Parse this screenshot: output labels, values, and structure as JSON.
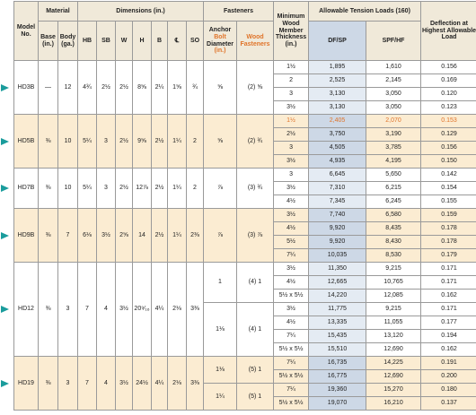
{
  "headers": {
    "model": "Model No.",
    "material": "Material",
    "base": "Base (in.)",
    "body": "Body (ga.)",
    "dimensions": "Dimensions (in.)",
    "HB": "HB",
    "SB": "SB",
    "W": "W",
    "H": "H",
    "B": "B",
    "CL": "℄",
    "SO": "SO",
    "fasteners": "Fasteners",
    "anchor_pre": "Anchor",
    "anchor_bolt": "Bolt",
    "anchor_post": "Diameter",
    "anchor_unit": "(in.)",
    "wood_fasteners": "Wood Fasteners",
    "min_wood": "Minimum Wood Member Thickness (in.)",
    "allowable": "Allowable Tension Loads (160)",
    "dfsp": "DF/SP",
    "spfhf": "SPF/HF",
    "deflection": "Deflection at Highest Allowable Load"
  },
  "models": [
    {
      "model": "HD3B",
      "base": "—",
      "body": "12",
      "HB": "4¾",
      "SB": "2½",
      "W": "2½",
      "H": "8⅝",
      "B": "2¼",
      "CL": "1⅝",
      "SO": "¾",
      "shade": false,
      "groups": [
        {
          "anchor": "⅝",
          "wood": "(2) ⅝",
          "rows": [
            [
              "1½",
              "1,895",
              "1,610",
              "0.156",
              false
            ],
            [
              "2",
              "2,525",
              "2,145",
              "0.169",
              false
            ],
            [
              "3",
              "3,130",
              "3,050",
              "0.120",
              false
            ],
            [
              "3½",
              "3,130",
              "3,050",
              "0.123",
              false
            ]
          ]
        }
      ]
    },
    {
      "model": "HD5B",
      "base": "⅜",
      "body": "10",
      "HB": "5¼",
      "SB": "3",
      "W": "2½",
      "H": "9⅝",
      "B": "2½",
      "CL": "1¼",
      "SO": "2",
      "shade": true,
      "groups": [
        {
          "anchor": "⅝",
          "wood": "(2) ¾",
          "rows": [
            [
              "1½",
              "2,405",
              "2,070",
              "0.153",
              true
            ],
            [
              "2½",
              "3,750",
              "3,190",
              "0.129",
              false
            ],
            [
              "3",
              "4,505",
              "3,785",
              "0.156",
              false
            ],
            [
              "3½",
              "4,935",
              "4,195",
              "0.150",
              false
            ]
          ]
        }
      ]
    },
    {
      "model": "HD7B",
      "base": "⅜",
      "body": "10",
      "HB": "5¼",
      "SB": "3",
      "W": "2½",
      "H": "12⅞",
      "B": "2½",
      "CL": "1¼",
      "SO": "2",
      "shade": false,
      "groups": [
        {
          "anchor": "⅞",
          "wood": "(3) ¾",
          "rows": [
            [
              "3",
              "6,645",
              "5,650",
              "0.142",
              false
            ],
            [
              "3½",
              "7,310",
              "6,215",
              "0.154",
              false
            ],
            [
              "4½",
              "7,345",
              "6,245",
              "0.155",
              false
            ]
          ]
        }
      ]
    },
    {
      "model": "HD9B",
      "base": "⅜",
      "body": "7",
      "HB": "6⅛",
      "SB": "3½",
      "W": "2⅝",
      "H": "14",
      "B": "2½",
      "CL": "1¼",
      "SO": "2⅜",
      "shade": true,
      "groups": [
        {
          "anchor": "⅞",
          "wood": "(3) ⅞",
          "rows": [
            [
              "3½",
              "7,740",
              "6,580",
              "0.159",
              false
            ],
            [
              "4½",
              "9,920",
              "8,435",
              "0.178",
              false
            ],
            [
              "5½",
              "9,920",
              "8,430",
              "0.178",
              false
            ],
            [
              "7¼",
              "10,035",
              "8,530",
              "0.179",
              false
            ]
          ]
        }
      ]
    },
    {
      "model": "HD12",
      "base": "⅜",
      "body": "3",
      "HB": "7",
      "SB": "4",
      "W": "3½",
      "H": "20⁹⁄₁₆",
      "B": "4¼",
      "CL": "2⅛",
      "SO": "3⅜",
      "shade": false,
      "groups": [
        {
          "anchor": "1",
          "wood": "(4) 1",
          "rows": [
            [
              "3½",
              "11,350",
              "9,215",
              "0.171",
              false
            ],
            [
              "4½",
              "12,665",
              "10,765",
              "0.171",
              false
            ],
            [
              "5½ x 5½",
              "14,220",
              "12,085",
              "0.162",
              false
            ]
          ]
        },
        {
          "anchor": "1⅛",
          "wood": "(4) 1",
          "rows": [
            [
              "3½",
              "11,775",
              "9,215",
              "0.171",
              false
            ],
            [
              "4½",
              "13,335",
              "11,055",
              "0.177",
              false
            ],
            [
              "7¼",
              "15,435",
              "13,120",
              "0.194",
              false
            ],
            [
              "5½ x 5½",
              "15,510",
              "12,690",
              "0.162",
              false
            ]
          ]
        }
      ]
    },
    {
      "model": "HD19",
      "base": "⅜",
      "body": "3",
      "HB": "7",
      "SB": "4",
      "W": "3½",
      "H": "24½",
      "B": "4¼",
      "CL": "2⅛",
      "SO": "3⅜",
      "shade": true,
      "groups": [
        {
          "anchor": "1⅛",
          "wood": "(5) 1",
          "rows": [
            [
              "7¼",
              "16,735",
              "14,225",
              "0.191",
              false
            ],
            [
              "5½ x 5½",
              "16,775",
              "12,690",
              "0.200",
              false
            ]
          ]
        },
        {
          "anchor": "1¼",
          "wood": "(5) 1",
          "rows": [
            [
              "7¼",
              "19,360",
              "15,270",
              "0.180",
              false
            ],
            [
              "5½ x 5½",
              "19,070",
              "16,210",
              "0.137",
              false
            ]
          ]
        }
      ]
    }
  ]
}
